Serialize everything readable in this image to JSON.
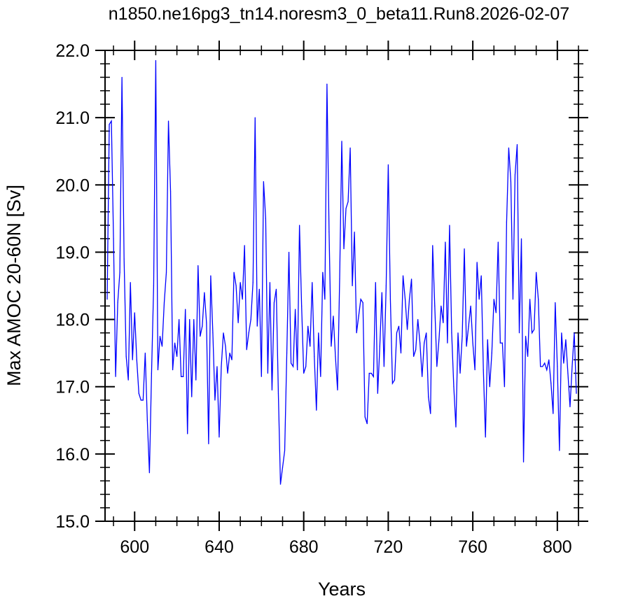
{
  "chart_data": {
    "type": "line",
    "title": "n1850.ne16pg3_tn14.noresm3_0_beta11.Run8.2026-02-07",
    "xlabel": "Years",
    "ylabel": "Max AMOC 20-60N [Sv]",
    "xlim": [
      586,
      810
    ],
    "ylim": [
      15.0,
      22.0
    ],
    "x_ticks": [
      600,
      640,
      680,
      720,
      760,
      800
    ],
    "x_tick_labels": [
      "600",
      "640",
      "680",
      "720",
      "760",
      "800"
    ],
    "y_ticks": [
      15.0,
      16.0,
      17.0,
      18.0,
      19.0,
      20.0,
      21.0,
      22.0
    ],
    "y_tick_labels": [
      "15.0",
      "16.0",
      "17.0",
      "18.0",
      "19.0",
      "20.0",
      "21.0",
      "22.0"
    ],
    "grid": false,
    "series": [
      {
        "color": "#0000ff",
        "x_start": 587,
        "x_step": 1,
        "values": [
          18.3,
          20.9,
          20.95,
          19.2,
          17.15,
          18.25,
          18.7,
          21.6,
          18.9,
          17.45,
          17.1,
          18.55,
          17.4,
          18.1,
          17.4,
          16.9,
          16.8,
          16.8,
          17.5,
          16.5,
          15.72,
          17.2,
          18.5,
          21.85,
          17.25,
          17.75,
          17.6,
          18.25,
          18.7,
          20.95,
          19.9,
          17.25,
          17.65,
          17.45,
          18.0,
          17.15,
          17.15,
          18.15,
          16.3,
          18.0,
          16.85,
          18.0,
          17.1,
          18.8,
          17.75,
          17.9,
          18.4,
          17.95,
          16.15,
          18.65,
          17.8,
          16.8,
          17.3,
          16.25,
          17.3,
          17.8,
          17.6,
          17.2,
          17.5,
          17.4,
          18.7,
          18.5,
          17.95,
          18.55,
          18.3,
          19.1,
          17.55,
          17.8,
          18.0,
          18.55,
          21.0,
          17.9,
          18.45,
          17.15,
          20.05,
          19.5,
          17.2,
          18.55,
          16.95,
          18.25,
          18.45,
          16.9,
          15.55,
          15.8,
          16.05,
          17.5,
          19.0,
          17.35,
          17.3,
          18.15,
          17.25,
          19.4,
          18.2,
          17.2,
          17.3,
          17.9,
          17.6,
          18.55,
          17.45,
          16.65,
          17.8,
          17.15,
          18.7,
          18.3,
          21.5,
          19.3,
          17.6,
          18.05,
          17.45,
          16.95,
          18.6,
          20.65,
          19.05,
          19.65,
          19.75,
          20.55,
          18.5,
          19.3,
          17.8,
          18.05,
          18.3,
          18.25,
          16.55,
          16.45,
          17.2,
          17.2,
          17.15,
          18.55,
          16.9,
          17.6,
          18.4,
          17.3,
          18.5,
          20.3,
          18.3,
          17.05,
          17.1,
          17.8,
          17.9,
          17.5,
          18.65,
          18.3,
          17.85,
          18.3,
          18.6,
          17.45,
          17.55,
          18.0,
          17.65,
          17.15,
          17.65,
          17.8,
          16.85,
          16.6,
          19.1,
          18.2,
          17.3,
          17.7,
          18.2,
          17.95,
          19.15,
          17.65,
          19.4,
          17.8,
          17.0,
          16.4,
          17.8,
          17.2,
          17.75,
          19.05,
          17.6,
          17.9,
          18.2,
          17.65,
          17.25,
          18.85,
          18.3,
          18.65,
          17.25,
          16.25,
          17.7,
          17.0,
          17.5,
          18.3,
          18.1,
          19.15,
          17.65,
          17.65,
          17.0,
          19.45,
          20.55,
          20.05,
          18.3,
          20.15,
          20.6,
          17.8,
          19.2,
          15.88,
          17.75,
          17.45,
          18.3,
          17.8,
          17.85,
          18.7,
          18.3,
          17.3,
          17.3,
          17.35,
          17.25,
          17.4,
          17.05,
          16.6,
          18.25,
          17.3,
          16.05,
          17.8,
          17.35,
          17.7,
          17.2,
          16.7,
          17.3,
          17.8,
          16.9
        ]
      }
    ]
  }
}
